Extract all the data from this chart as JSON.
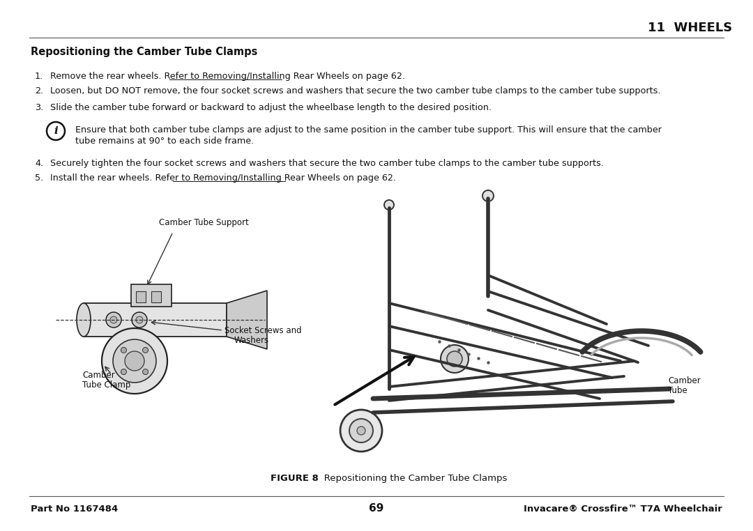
{
  "page_title": "11  WHEELS",
  "section_heading": "Repositioning the Camber Tube Clamps",
  "steps": [
    "Remove the rear wheels. Refer to Removing/Installing Rear Wheels on page 62.",
    "Loosen, but DO NOT remove, the four socket screws and washers that secure the two camber tube clamps to the camber tube supports.",
    "Slide the camber tube forward or backward to adjust the wheelbase length to the desired position.",
    "Securely tighten the four socket screws and washers that secure the two camber tube clamps to the camber tube supports.",
    "Install the rear wheels. Refer to Removing/Installing Rear Wheels on page 62."
  ],
  "note_line1": "Ensure that both camber tube clamps are adjust to the same position in the camber tube support. This will ensure that the camber",
  "note_line2": "tube remains at 90° to each side frame.",
  "figure_caption_bold": "FIGURE 8",
  "figure_caption_rest": "   Repositioning the Camber Tube Clamps",
  "footer_left": "Part No 1167484",
  "footer_center": "69",
  "footer_right": "Invacare® Crossfire™ T7A Wheelchair",
  "underlined_text": "Removing/Installing Rear Wheels",
  "label_camber_tube_support": "Camber Tube Support",
  "label_socket_screws_line1": "Socket Screws and",
  "label_socket_screws_line2": "Washers",
  "label_camber_clamp_line1": "Camber",
  "label_camber_clamp_line2": "Tube Clamp",
  "label_camber_tube_line1": "Camber",
  "label_camber_tube_line2": "Tube",
  "bg_color": "#ffffff",
  "text_color": "#111111"
}
